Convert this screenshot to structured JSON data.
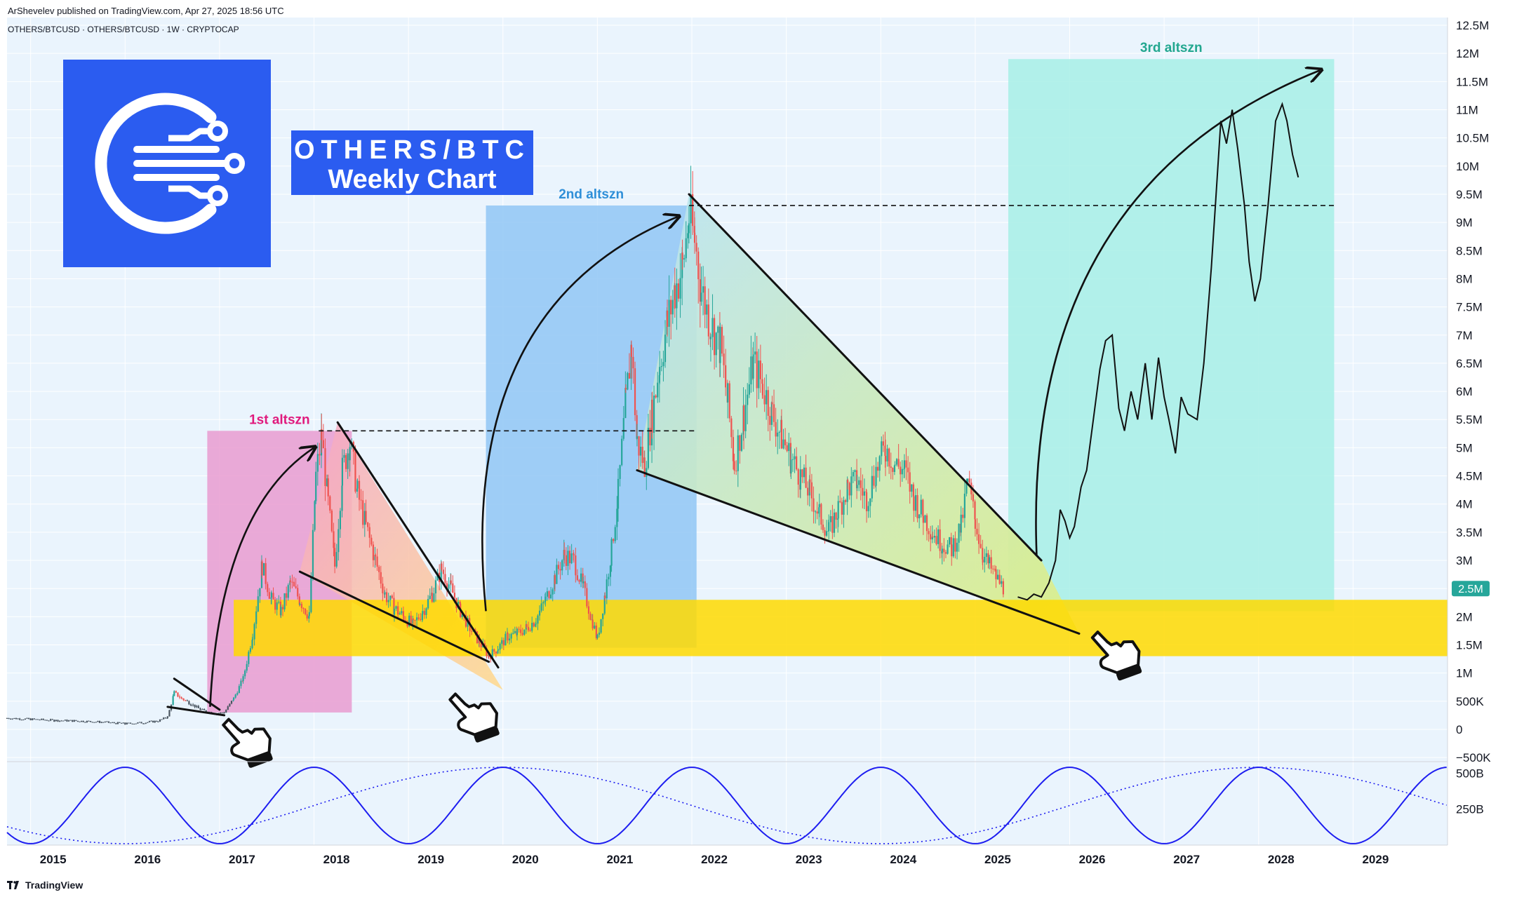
{
  "header": {
    "publisher_line": "ArShevelev published on TradingView.com, Apr 27, 2025 18:56 UTC",
    "symbol_line": "OTHERS/BTCUSD · OTHERS/BTCUSD · 1W · CRYPTOCAP"
  },
  "brand": {
    "title_line1": "OTHERS/BTC",
    "title_line2": "Weekly Chart",
    "logo_icon": "circuit-c-logo-icon"
  },
  "footer": {
    "label": "TradingView"
  },
  "colors": {
    "background": "#eaf4fd",
    "candle_up": "#26a69a",
    "candle_down": "#ef5350",
    "zone_1st": "#e99bd0",
    "zone_2nd": "#90c6f4",
    "zone_3rd": "#a7efe6",
    "support_band": "#ffd900",
    "wave": "#1d1df0",
    "price_badge": "#26a69a"
  },
  "chart_data": {
    "type": "candlestick",
    "interval": "1W",
    "price_axis": {
      "ticks": [
        "12.5M",
        "12M",
        "11.5M",
        "11M",
        "10.5M",
        "10M",
        "9.5M",
        "9M",
        "8.5M",
        "8M",
        "7.5M",
        "7M",
        "6.5M",
        "6M",
        "5.5M",
        "5M",
        "4.5M",
        "4M",
        "3.5M",
        "3M",
        "2.5M",
        "2M",
        "1.5M",
        "1M",
        "500K",
        "0",
        "−500K"
      ],
      "tick_values": [
        12.5,
        12,
        11.5,
        11,
        10.5,
        10,
        9.5,
        9,
        8.5,
        8,
        7.5,
        7,
        6.5,
        6,
        5.5,
        5,
        4.5,
        4,
        3.5,
        3,
        2.5,
        2,
        1.5,
        1,
        0.5,
        0,
        -0.5
      ],
      "unit": "M",
      "range": [
        -0.6,
        12.6
      ],
      "current_price_label": "2.5M",
      "current_price": 2.5
    },
    "time_axis": {
      "labels": [
        "2015",
        "2016",
        "2017",
        "2018",
        "2019",
        "2020",
        "2021",
        "2022",
        "2023",
        "2024",
        "2025",
        "2026",
        "2027",
        "2028",
        "2029"
      ],
      "range": [
        2014.75,
        2030.0
      ]
    },
    "oscillator": {
      "axis_labels": [
        "500B",
        "250B"
      ],
      "axis_values": [
        500,
        250
      ],
      "range": [
        0,
        560
      ],
      "solid_period_years": 2.0,
      "solid_peak_year": 2018.0,
      "dotted_period_years": 8.0,
      "dotted_peak_year": 2020.0
    },
    "price_history": [
      [
        2014.75,
        0.2
      ],
      [
        2015.0,
        0.18
      ],
      [
        2015.25,
        0.16
      ],
      [
        2015.5,
        0.15
      ],
      [
        2015.75,
        0.13
      ],
      [
        2016.0,
        0.1
      ],
      [
        2016.2,
        0.12
      ],
      [
        2016.35,
        0.15
      ],
      [
        2016.45,
        0.22
      ],
      [
        2016.52,
        0.65
      ],
      [
        2016.6,
        0.55
      ],
      [
        2016.7,
        0.45
      ],
      [
        2016.8,
        0.35
      ],
      [
        2016.95,
        0.28
      ],
      [
        2017.05,
        0.3
      ],
      [
        2017.15,
        0.55
      ],
      [
        2017.25,
        0.9
      ],
      [
        2017.35,
        1.7
      ],
      [
        2017.45,
        2.9
      ],
      [
        2017.55,
        2.3
      ],
      [
        2017.65,
        2.1
      ],
      [
        2017.75,
        2.6
      ],
      [
        2017.85,
        2.3
      ],
      [
        2017.95,
        2.0
      ],
      [
        2018.02,
        4.5
      ],
      [
        2018.08,
        5.2
      ],
      [
        2018.15,
        4.0
      ],
      [
        2018.22,
        2.9
      ],
      [
        2018.3,
        4.6
      ],
      [
        2018.38,
        5.1
      ],
      [
        2018.46,
        4.2
      ],
      [
        2018.55,
        3.6
      ],
      [
        2018.65,
        3.0
      ],
      [
        2018.75,
        2.4
      ],
      [
        2018.85,
        2.15
      ],
      [
        2018.95,
        2.0
      ],
      [
        2019.05,
        1.85
      ],
      [
        2019.15,
        2.1
      ],
      [
        2019.25,
        2.4
      ],
      [
        2019.35,
        2.85
      ],
      [
        2019.45,
        2.5
      ],
      [
        2019.55,
        2.1
      ],
      [
        2019.65,
        1.8
      ],
      [
        2019.75,
        1.55
      ],
      [
        2019.85,
        1.3
      ],
      [
        2019.95,
        1.45
      ],
      [
        2020.05,
        1.65
      ],
      [
        2020.15,
        1.7
      ],
      [
        2020.25,
        1.8
      ],
      [
        2020.35,
        1.95
      ],
      [
        2020.45,
        2.3
      ],
      [
        2020.55,
        2.7
      ],
      [
        2020.65,
        3.1
      ],
      [
        2020.75,
        3.0
      ],
      [
        2020.85,
        2.5
      ],
      [
        2020.95,
        1.9
      ],
      [
        2021.0,
        1.6
      ],
      [
        2021.08,
        2.4
      ],
      [
        2021.15,
        3.2
      ],
      [
        2021.22,
        4.2
      ],
      [
        2021.3,
        5.8
      ],
      [
        2021.36,
        6.8
      ],
      [
        2021.42,
        5.1
      ],
      [
        2021.5,
        4.7
      ],
      [
        2021.58,
        5.6
      ],
      [
        2021.66,
        6.5
      ],
      [
        2021.74,
        7.2
      ],
      [
        2021.82,
        7.8
      ],
      [
        2021.9,
        8.2
      ],
      [
        2021.97,
        9.1
      ],
      [
        2022.03,
        8.7
      ],
      [
        2022.1,
        7.8
      ],
      [
        2022.2,
        7.2
      ],
      [
        2022.3,
        6.8
      ],
      [
        2022.38,
        5.8
      ],
      [
        2022.45,
        4.7
      ],
      [
        2022.55,
        5.6
      ],
      [
        2022.65,
        6.5
      ],
      [
        2022.75,
        6.1
      ],
      [
        2022.85,
        5.6
      ],
      [
        2022.95,
        5.2
      ],
      [
        2023.05,
        4.8
      ],
      [
        2023.15,
        4.5
      ],
      [
        2023.25,
        4.2
      ],
      [
        2023.35,
        3.8
      ],
      [
        2023.45,
        3.5
      ],
      [
        2023.55,
        3.9
      ],
      [
        2023.65,
        4.3
      ],
      [
        2023.75,
        4.4
      ],
      [
        2023.85,
        4.1
      ],
      [
        2023.95,
        4.6
      ],
      [
        2024.05,
        5.0
      ],
      [
        2024.15,
        4.7
      ],
      [
        2024.25,
        4.6
      ],
      [
        2024.35,
        4.1
      ],
      [
        2024.45,
        3.8
      ],
      [
        2024.55,
        3.5
      ],
      [
        2024.65,
        3.3
      ],
      [
        2024.75,
        3.2
      ],
      [
        2024.85,
        3.6
      ],
      [
        2024.92,
        4.4
      ],
      [
        2025.0,
        3.7
      ],
      [
        2025.08,
        3.1
      ],
      [
        2025.15,
        2.9
      ],
      [
        2025.22,
        2.7
      ],
      [
        2025.3,
        2.5
      ]
    ],
    "projection": [
      [
        2025.45,
        2.35
      ],
      [
        2025.55,
        2.3
      ],
      [
        2025.62,
        2.4
      ],
      [
        2025.7,
        2.35
      ],
      [
        2025.78,
        2.6
      ],
      [
        2025.85,
        3.0
      ],
      [
        2025.9,
        3.9
      ],
      [
        2025.95,
        3.7
      ],
      [
        2026.0,
        3.4
      ],
      [
        2026.05,
        3.6
      ],
      [
        2026.12,
        4.3
      ],
      [
        2026.18,
        4.6
      ],
      [
        2026.25,
        5.5
      ],
      [
        2026.32,
        6.4
      ],
      [
        2026.38,
        6.9
      ],
      [
        2026.45,
        7.0
      ],
      [
        2026.52,
        5.7
      ],
      [
        2026.58,
        5.3
      ],
      [
        2026.65,
        6.0
      ],
      [
        2026.72,
        5.5
      ],
      [
        2026.8,
        6.5
      ],
      [
        2026.87,
        5.5
      ],
      [
        2026.94,
        6.6
      ],
      [
        2027.0,
        5.9
      ],
      [
        2027.05,
        5.5
      ],
      [
        2027.12,
        4.9
      ],
      [
        2027.18,
        5.9
      ],
      [
        2027.25,
        5.6
      ],
      [
        2027.35,
        5.5
      ],
      [
        2027.42,
        6.5
      ],
      [
        2027.5,
        8.2
      ],
      [
        2027.55,
        9.5
      ],
      [
        2027.6,
        10.8
      ],
      [
        2027.66,
        10.4
      ],
      [
        2027.72,
        11.0
      ],
      [
        2027.78,
        10.3
      ],
      [
        2027.85,
        9.3
      ],
      [
        2027.9,
        8.3
      ],
      [
        2027.96,
        7.6
      ],
      [
        2028.02,
        8.0
      ],
      [
        2028.1,
        9.3
      ],
      [
        2028.18,
        10.8
      ],
      [
        2028.25,
        11.1
      ],
      [
        2028.3,
        10.8
      ],
      [
        2028.36,
        10.2
      ],
      [
        2028.42,
        9.8
      ]
    ],
    "zones": [
      {
        "name": "1st altszn",
        "label": "1st altszn",
        "x": [
          2016.87,
          2018.4
        ],
        "y": [
          0.3,
          5.3
        ],
        "color": "#e99bd0"
      },
      {
        "name": "2nd altszn",
        "label": "2nd altszn",
        "x": [
          2019.82,
          2022.05
        ],
        "y": [
          1.45,
          9.3
        ],
        "color": "#90c6f4"
      },
      {
        "name": "3rd altszn",
        "label": "3rd altszn",
        "x": [
          2025.35,
          2028.8
        ],
        "y": [
          2.1,
          11.9
        ],
        "color": "#a7efe6"
      }
    ],
    "support_band": {
      "x": [
        2017.15,
        2030.0
      ],
      "y": [
        1.3,
        2.3
      ]
    },
    "resistance_lines": [
      {
        "x": [
          2018.05,
          2022.05
        ],
        "y": 5.3
      },
      {
        "x": [
          2021.97,
          2028.8
        ],
        "y": 9.3
      }
    ],
    "wedges": [
      {
        "upper": [
          [
            2016.52,
            0.9
          ],
          [
            2017.0,
            0.35
          ]
        ],
        "lower": [
          [
            2016.45,
            0.4
          ],
          [
            2017.05,
            0.25
          ]
        ]
      },
      {
        "upper": [
          [
            2018.25,
            5.45
          ],
          [
            2019.95,
            1.1
          ]
        ],
        "lower": [
          [
            2017.85,
            2.8
          ],
          [
            2019.85,
            1.2
          ]
        ]
      },
      {
        "upper": [
          [
            2021.97,
            9.5
          ],
          [
            2025.7,
            3.0
          ]
        ],
        "lower": [
          [
            2021.42,
            4.6
          ],
          [
            2026.1,
            1.7
          ]
        ]
      }
    ],
    "arrows": [
      {
        "from": [
          2016.9,
          0.4
        ],
        "ctrl": [
          2017.0,
          3.9
        ],
        "to": [
          2018.0,
          5.0
        ]
      },
      {
        "from": [
          2019.82,
          2.1
        ],
        "ctrl": [
          2019.5,
          7.5
        ],
        "to": [
          2021.85,
          9.1
        ]
      },
      {
        "from": [
          2025.65,
          3.1
        ],
        "ctrl": [
          2025.5,
          9.6
        ],
        "to": [
          2028.65,
          11.7
        ]
      }
    ],
    "pointers": [
      {
        "x": 2017.3,
        "y": 0.15
      },
      {
        "x": 2019.7,
        "y": 0.6
      },
      {
        "x": 2026.5,
        "y": 1.7
      }
    ]
  }
}
